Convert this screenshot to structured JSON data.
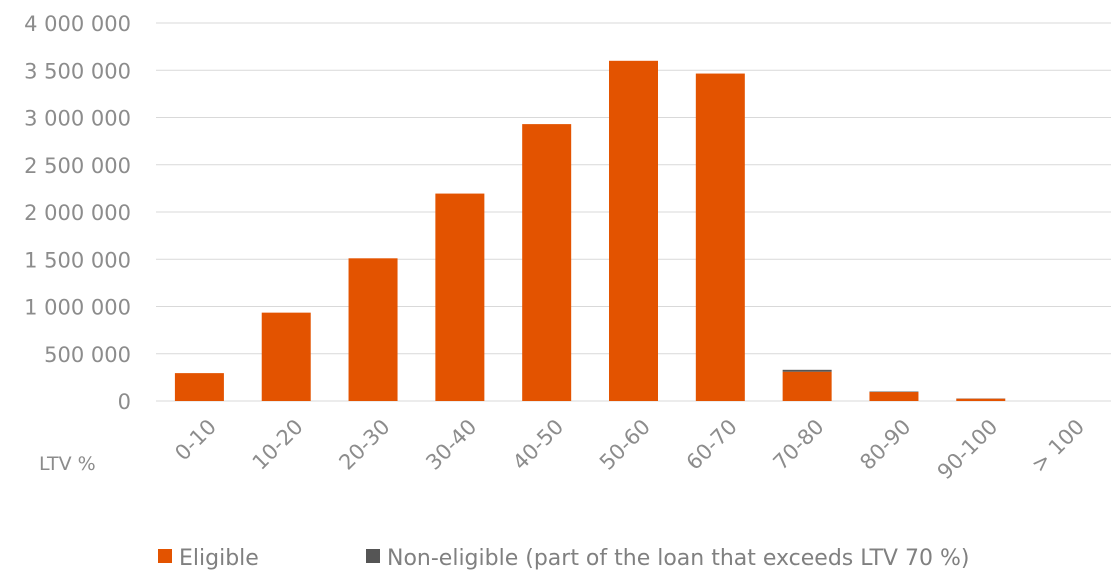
{
  "chart_data": {
    "type": "bar",
    "stacked": true,
    "xlabel": "LTV %",
    "ylabel": "",
    "categories": [
      "0-10",
      "10-20",
      "20-30",
      "30-40",
      "40-50",
      "50-60",
      "60-70",
      "70-80",
      "80-90",
      "90-100",
      "> 100"
    ],
    "series": [
      {
        "name": "Eligible",
        "color": "#e35300",
        "values": [
          295000,
          935000,
          1510000,
          2195000,
          2930000,
          3600000,
          3465000,
          310000,
          95000,
          25000,
          0
        ]
      },
      {
        "name": "Non-eligible (part of the loan that exceeds LTV 70 %)",
        "color": "#555555",
        "values": [
          0,
          0,
          0,
          0,
          0,
          0,
          0,
          20000,
          5000,
          2000,
          0
        ]
      }
    ],
    "ylim": [
      0,
      4000000
    ],
    "yticks": [
      0,
      500000,
      1000000,
      1500000,
      2000000,
      2500000,
      3000000,
      3500000,
      4000000
    ],
    "ytick_labels": [
      "0",
      "500 000",
      "1 000 000",
      "1 500 000",
      "2 000 000",
      "2 500 000",
      "3 000 000",
      "3 500 000",
      "4 000 000"
    ],
    "grid": true,
    "legend": "bottom"
  }
}
